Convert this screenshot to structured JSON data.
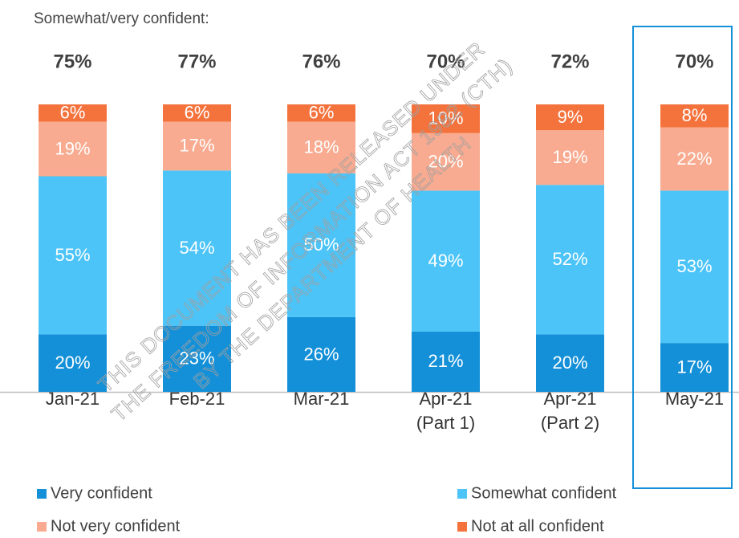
{
  "chart_data": {
    "type": "stacked_bar",
    "subtitle": "Somewhat/very confident:",
    "categories": [
      "Jan-21",
      "Feb-21",
      "Mar-21",
      "Apr-21\n(Part 1)",
      "Apr-21\n(Part 2)",
      "May-21"
    ],
    "totals": {
      "values": [
        75,
        77,
        76,
        70,
        72,
        70
      ],
      "value_labels": [
        "75%",
        "77%",
        "76%",
        "70%",
        "72%",
        "70%"
      ]
    },
    "series": [
      {
        "name": "Very confident",
        "color": "#1490d8",
        "values": [
          20,
          23,
          26,
          21,
          20,
          17
        ],
        "value_labels": [
          "20%",
          "23%",
          "26%",
          "21%",
          "20%",
          "17%"
        ]
      },
      {
        "name": "Somewhat confident",
        "color": "#4cc4f8",
        "values": [
          55,
          54,
          50,
          49,
          52,
          53
        ],
        "value_labels": [
          "55%",
          "54%",
          "50%",
          "49%",
          "52%",
          "53%"
        ]
      },
      {
        "name": "Not very confident",
        "color": "#f8ab90",
        "values": [
          19,
          17,
          18,
          20,
          19,
          22
        ],
        "value_labels": [
          "19%",
          "17%",
          "18%",
          "20%",
          "19%",
          "22%"
        ]
      },
      {
        "name": "Not at all confident",
        "color": "#f4733d",
        "values": [
          6,
          6,
          6,
          10,
          9,
          8
        ],
        "value_labels": [
          "6%",
          "6%",
          "6%",
          "10%",
          "9%",
          "8%"
        ]
      }
    ],
    "ylim": [
      0,
      100
    ],
    "watermark": [
      "THIS DOCUMENT HAS BEEN RELEASED UNDER",
      "THE FREEDOM OF INFORMATION ACT 1982 (CTH)",
      "BY THE DEPARTMENT OF HEALTH"
    ]
  }
}
